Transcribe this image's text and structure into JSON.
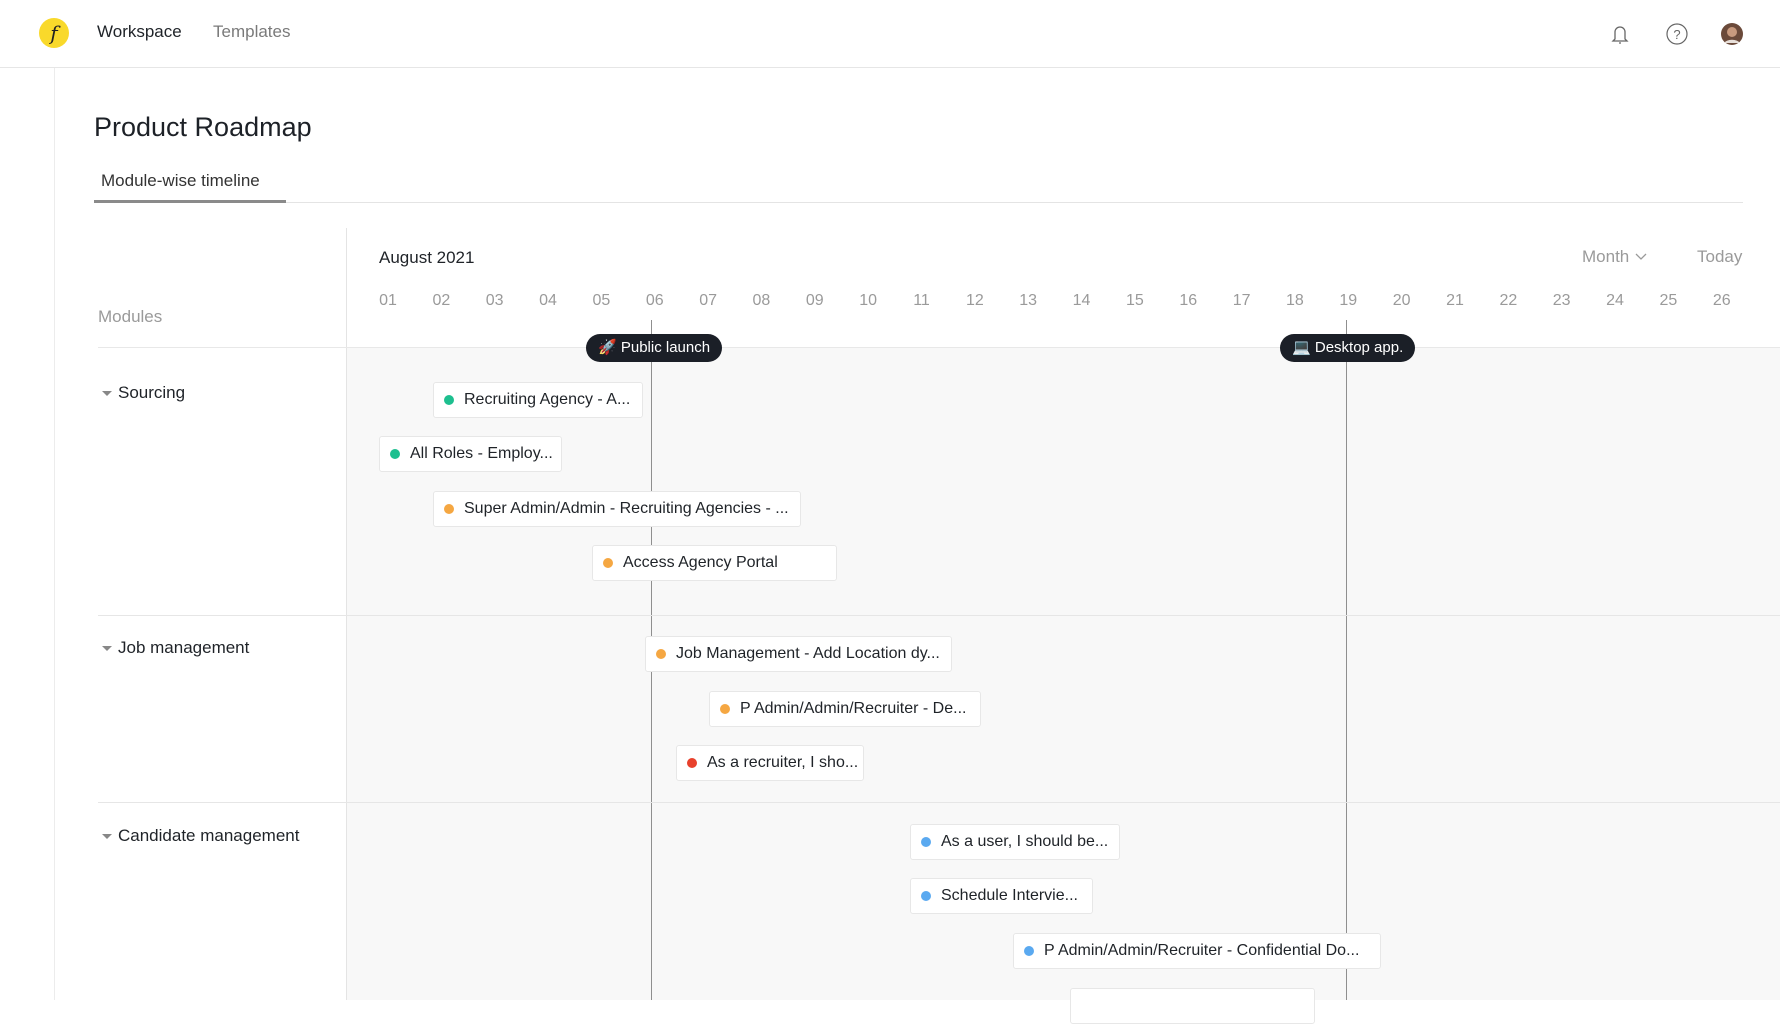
{
  "header": {
    "logo_letter": "f",
    "nav": [
      "Workspace",
      "Templates"
    ],
    "icons": [
      "bell-icon",
      "help-icon",
      "avatar"
    ]
  },
  "page": {
    "title": "Product Roadmap",
    "tab": "Module-wise timeline"
  },
  "timeline": {
    "month": "August 2021",
    "modules_label": "Modules",
    "view": "Month",
    "today": "Today",
    "days": [
      "01",
      "02",
      "03",
      "04",
      "05",
      "06",
      "07",
      "08",
      "09",
      "10",
      "11",
      "12",
      "13",
      "14",
      "15",
      "16",
      "17",
      "18",
      "19",
      "20",
      "21",
      "22",
      "23",
      "24",
      "25",
      "26"
    ],
    "milestones": [
      {
        "label": "Public launch",
        "icon": "rocket-icon"
      },
      {
        "label": "Desktop app.",
        "icon": "laptop-icon"
      }
    ],
    "sections": [
      {
        "name": "Sourcing",
        "items": [
          {
            "text": "Recruiting Agency - A...",
            "color": "#1dbf8f"
          },
          {
            "text": "All Roles - Employ...",
            "color": "#1dbf8f"
          },
          {
            "text": "Super Admin/Admin - Recruiting Agencies - ...",
            "color": "#f5a742"
          },
          {
            "text": "Access Agency Portal",
            "color": "#f5a742"
          }
        ]
      },
      {
        "name": "Job management",
        "items": [
          {
            "text": "Job Management - Add Location dy...",
            "color": "#f5a742"
          },
          {
            "text": "P Admin/Admin/Recruiter - De...",
            "color": "#f5a742"
          },
          {
            "text": "As a recruiter, I sho...",
            "color": "#e8412c"
          }
        ]
      },
      {
        "name": "Candidate management",
        "items": [
          {
            "text": "As a user, I should be...",
            "color": "#5aa9f0"
          },
          {
            "text": "Schedule Intervie...",
            "color": "#5aa9f0"
          },
          {
            "text": "P Admin/Admin/Recruiter - Confidential Do...",
            "color": "#5aa9f0"
          }
        ]
      }
    ]
  }
}
